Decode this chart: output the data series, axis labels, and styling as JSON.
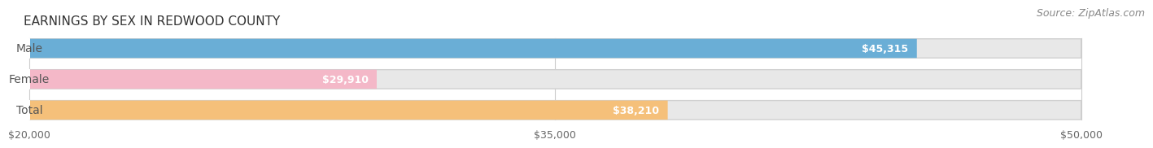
{
  "title": "EARNINGS BY SEX IN REDWOOD COUNTY",
  "source": "Source: ZipAtlas.com",
  "categories": [
    "Male",
    "Female",
    "Total"
  ],
  "values": [
    45315,
    29910,
    38210
  ],
  "bar_colors": [
    "#6aaed6",
    "#f4b8c8",
    "#f5c07a"
  ],
  "label_text_color": "#555555",
  "value_text_color": "#ffffff",
  "xmin": 20000,
  "xmax": 50000,
  "xticks": [
    20000,
    35000,
    50000
  ],
  "xtick_labels": [
    "$20,000",
    "$35,000",
    "$50,000"
  ],
  "bar_height": 0.62,
  "background_color": "#ffffff",
  "bar_bg_color": "#e8e8e8",
  "title_fontsize": 11,
  "source_fontsize": 9,
  "tick_fontsize": 9,
  "label_fontsize": 10,
  "value_fontsize": 9
}
